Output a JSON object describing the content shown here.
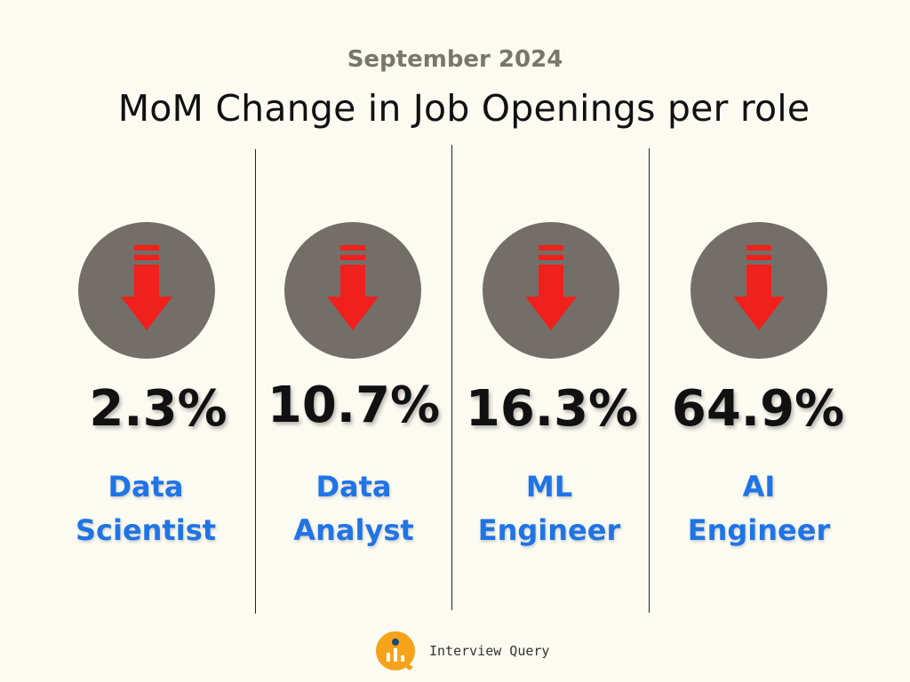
{
  "header": {
    "subtitle": "September 2024",
    "title": "MoM Change in Job Openings per role"
  },
  "chart_data": {
    "type": "table",
    "subtitle": "September 2024",
    "title": "MoM Change in Job Openings per role",
    "direction": "down",
    "unit": "%",
    "categories": [
      "Data Scientist",
      "Data Analyst",
      "ML Engineer",
      "AI Engineer"
    ],
    "values": [
      2.3,
      10.7,
      16.3,
      64.9
    ],
    "value_labels": [
      "2.3%",
      "10.7%",
      "16.3%",
      "64.9%"
    ]
  },
  "roles": [
    {
      "line1": "Data",
      "line2": "Scientist",
      "value": "2.3%",
      "icon": "down-arrow-icon"
    },
    {
      "line1": "Data",
      "line2": "Analyst",
      "value": "10.7%",
      "icon": "down-arrow-icon"
    },
    {
      "line1": "ML",
      "line2": "Engineer",
      "value": "16.3%",
      "icon": "down-arrow-icon"
    },
    {
      "line1": "AI",
      "line2": "Engineer",
      "value": "64.9%",
      "icon": "down-arrow-icon"
    }
  ],
  "footer": {
    "brand": "Interview Query",
    "logo_icon": "interview-query-logo-icon"
  },
  "colors": {
    "background": "#fbfbf2",
    "circle": "#736f68",
    "arrow": "#f0201c",
    "role_text": "#1f74e6",
    "subtitle_text": "#7a766d",
    "logo_orange": "#f7a21b",
    "logo_blue": "#1b4b73"
  }
}
